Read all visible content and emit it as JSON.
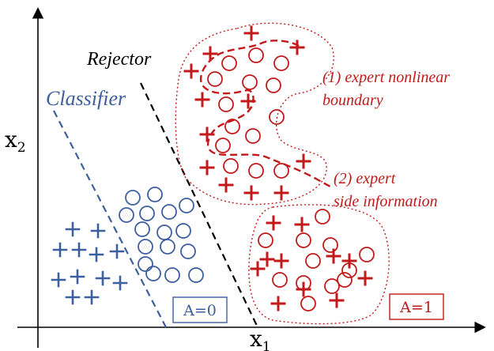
{
  "colors": {
    "blue": "#3d5f9e",
    "red": "#c21a1a",
    "black": "#000000"
  },
  "axes": {
    "x_label": "x",
    "x_sub": "1",
    "y_label": "x",
    "y_sub": "2"
  },
  "labels": {
    "classifier": "Classifier",
    "rejector": "Rejector",
    "expert_nonlinear": "(1) expert nonlinear",
    "boundary": "boundary",
    "expert_side": "(2) expert",
    "side_information": "side information",
    "a0": "A=0",
    "a1": "A=1"
  },
  "icons": {
    "plus": "plus-marker-icon",
    "circle": "circle-marker-icon"
  }
}
